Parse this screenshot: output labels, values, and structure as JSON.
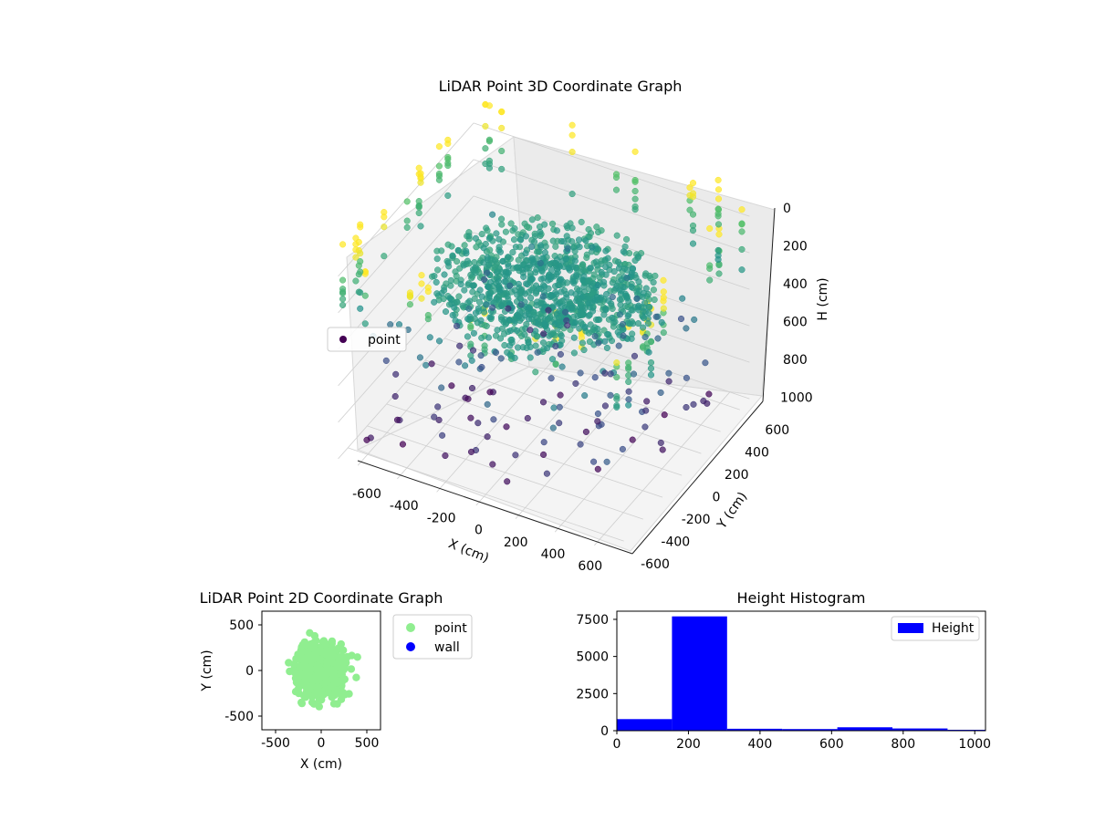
{
  "chart_data": [
    {
      "type": "scatter",
      "projection": "3d",
      "title": "LiDAR Point 3D Coordinate Graph",
      "xlabel": "X (cm)",
      "ylabel": "Y (cm)",
      "zlabel": "H (cm)",
      "xlim": [
        -700,
        700
      ],
      "ylim": [
        -700,
        700
      ],
      "zlim": [
        0,
        1000
      ],
      "z_axis_inverted": true,
      "xticks": [
        "-600",
        "-400",
        "-200",
        "0",
        "200",
        "400",
        "600"
      ],
      "yticks": [
        "-600",
        "-400",
        "-200",
        "0",
        "200",
        "400",
        "600"
      ],
      "zticks": [
        "0",
        "200",
        "400",
        "600",
        "800",
        "1000"
      ],
      "colormap": "viridis",
      "legend": {
        "placement": "left",
        "entries": [
          "point"
        ]
      },
      "grid": true,
      "series": [
        {
          "name": "point",
          "color": "#440154",
          "structure": "dense ring of points at H≈220 around the origin, radius ≈ 200–500 cm, plus scattered points at H up to 1000 and vertical wall columns near the outer edge"
        }
      ]
    },
    {
      "type": "scatter",
      "title": "LiDAR Point 2D Coordinate Graph",
      "xlabel": "X (cm)",
      "ylabel": "Y (cm)",
      "xlim": [
        -650,
        650
      ],
      "ylim": [
        -650,
        650
      ],
      "xticks": [
        "-500",
        "0",
        "500"
      ],
      "yticks": [
        "-500",
        "0",
        "500"
      ],
      "legend": {
        "placement": "outside right",
        "entries": [
          "point",
          "wall"
        ]
      },
      "series": [
        {
          "name": "point",
          "color": "#90ee90",
          "structure": "dense cloud filling roughly -600..600 in X and Y"
        },
        {
          "name": "wall",
          "color": "#0000ff",
          "points": []
        }
      ]
    },
    {
      "type": "bar",
      "subtype": "histogram",
      "title": "Height Histogram",
      "xlim": [
        0,
        1030
      ],
      "ylim": [
        0,
        8050
      ],
      "xticks": [
        "0",
        "200",
        "400",
        "600",
        "800",
        "1000"
      ],
      "yticks": [
        "0",
        "2500",
        "5000",
        "7500"
      ],
      "legend": {
        "placement": "top-right",
        "entries": [
          "Height"
        ]
      },
      "series": [
        {
          "name": "Height",
          "color": "#0000ff",
          "bin_edges": [
            0,
            154,
            308,
            462,
            616,
            770,
            924,
            1030
          ],
          "values": [
            780,
            7700,
            130,
            110,
            230,
            150,
            60
          ]
        }
      ]
    }
  ]
}
